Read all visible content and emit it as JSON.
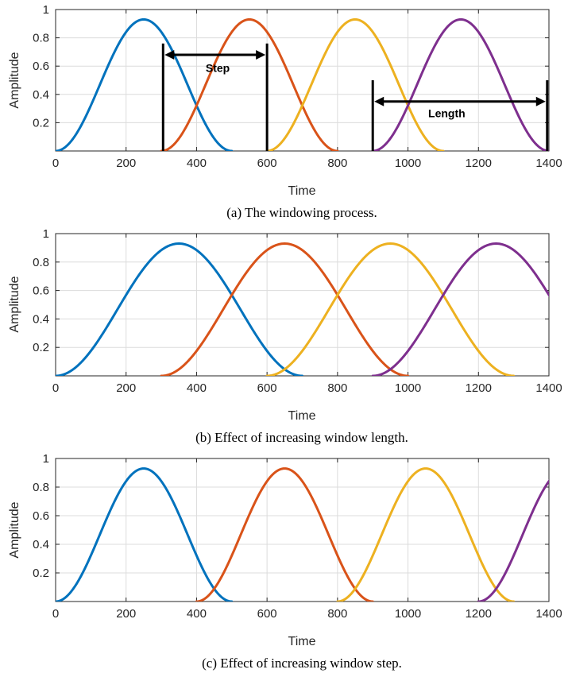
{
  "colors": {
    "series": [
      "#0072BD",
      "#D95319",
      "#EDB120",
      "#7E2F8E"
    ],
    "grid": "#dcdcdc",
    "axis": "#262626",
    "annotation": "#000000"
  },
  "chart_data": [
    {
      "type": "line",
      "caption": "(a) The windowing process.",
      "xlabel": "Time",
      "ylabel": "Amplitude",
      "xlim": [
        0,
        1400
      ],
      "ylim": [
        0,
        1
      ],
      "xticks": [
        0,
        200,
        400,
        600,
        800,
        1000,
        1200,
        1400
      ],
      "xtick_labels": [
        "0",
        "200",
        "400",
        "600",
        "800",
        "1000",
        "1200",
        "1400"
      ],
      "yticks": [
        0.2,
        0.4,
        0.6,
        0.8,
        1
      ],
      "ytick_labels": [
        "0.2",
        "0.4",
        "0.6",
        "0.8",
        "1"
      ],
      "grid": true,
      "window_peak": 0.93,
      "window_length": 500,
      "window_step": 300,
      "windows": [
        {
          "start": 0,
          "end": 500,
          "color_index": 0
        },
        {
          "start": 300,
          "end": 800,
          "color_index": 1
        },
        {
          "start": 600,
          "end": 1100,
          "color_index": 2
        },
        {
          "start": 900,
          "end": 1400,
          "color_index": 3
        }
      ],
      "annotations": [
        {
          "label": "Step",
          "x_from": 305,
          "x_to": 600,
          "arrow_y": 0.68,
          "bar_top": 0.76,
          "label_x": 460,
          "label_y": 0.56
        },
        {
          "label": "Length",
          "x_from": 900,
          "x_to": 1395,
          "arrow_y": 0.35,
          "bar_top": 0.5,
          "label_x": 1110,
          "label_y": 0.24
        }
      ]
    },
    {
      "type": "line",
      "caption": "(b) Effect of increasing window length.",
      "xlabel": "Time",
      "ylabel": "Amplitude",
      "xlim": [
        0,
        1400
      ],
      "ylim": [
        0,
        1
      ],
      "xticks": [
        0,
        200,
        400,
        600,
        800,
        1000,
        1200,
        1400
      ],
      "xtick_labels": [
        "0",
        "200",
        "400",
        "600",
        "800",
        "1000",
        "1200",
        "1400"
      ],
      "yticks": [
        0.2,
        0.4,
        0.6,
        0.8,
        1
      ],
      "ytick_labels": [
        "0.2",
        "0.4",
        "0.6",
        "0.8",
        "1"
      ],
      "grid": true,
      "window_peak": 0.93,
      "window_length": 700,
      "window_step": 300,
      "windows": [
        {
          "start": 0,
          "end": 700,
          "color_index": 0
        },
        {
          "start": 300,
          "end": 1000,
          "color_index": 1
        },
        {
          "start": 600,
          "end": 1300,
          "color_index": 2
        },
        {
          "start": 900,
          "end": 1600,
          "color_index": 3
        }
      ],
      "annotations": []
    },
    {
      "type": "line",
      "caption": "(c) Effect of increasing window step.",
      "xlabel": "Time",
      "ylabel": "Amplitude",
      "xlim": [
        0,
        1400
      ],
      "ylim": [
        0,
        1
      ],
      "xticks": [
        0,
        200,
        400,
        600,
        800,
        1000,
        1200,
        1400
      ],
      "xtick_labels": [
        "0",
        "200",
        "400",
        "600",
        "800",
        "1000",
        "1200",
        "1400"
      ],
      "yticks": [
        0.2,
        0.4,
        0.6,
        0.8,
        1
      ],
      "ytick_labels": [
        "0.2",
        "0.4",
        "0.6",
        "0.8",
        "1"
      ],
      "grid": true,
      "window_peak": 0.93,
      "window_length": 500,
      "window_step": 400,
      "windows": [
        {
          "start": 0,
          "end": 500,
          "color_index": 0
        },
        {
          "start": 400,
          "end": 900,
          "color_index": 1
        },
        {
          "start": 800,
          "end": 1300,
          "color_index": 2
        },
        {
          "start": 1200,
          "end": 1700,
          "color_index": 3
        }
      ],
      "annotations": []
    }
  ]
}
